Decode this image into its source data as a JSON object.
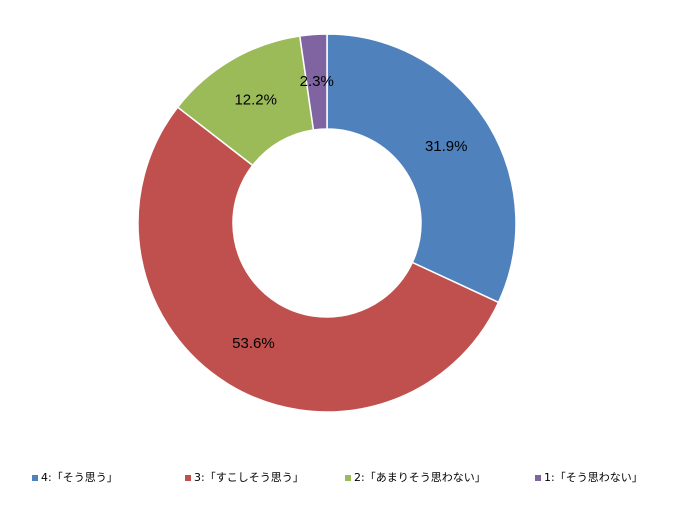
{
  "chart_data": {
    "type": "donut",
    "categories": [
      "4:「そう思う」",
      "3:「すこしそう思う」",
      "2:「あまりそう思わない」",
      "1:「そう思わない」"
    ],
    "values": [
      31.9,
      53.6,
      12.2,
      2.3
    ],
    "value_labels": [
      "31.9%",
      "53.6%",
      "12.2%",
      "2.3%"
    ],
    "colors": [
      "#4f81bd",
      "#c0504d",
      "#9bbb59",
      "#8064a2"
    ],
    "legend": "bottom"
  }
}
